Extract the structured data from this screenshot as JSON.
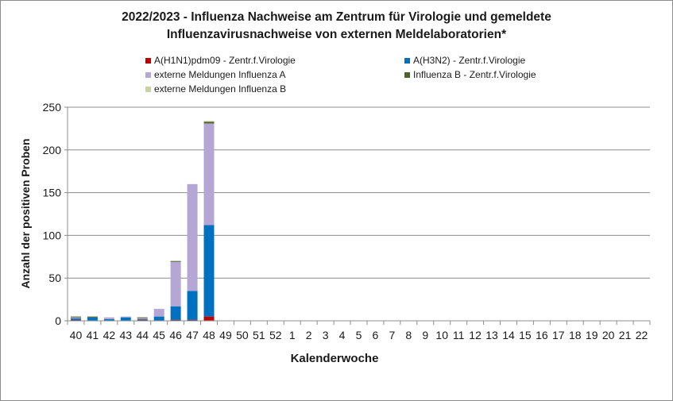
{
  "chart_data": {
    "type": "bar",
    "stacked": true,
    "title_line1": "2022/2023 - Influenza Nachweise am Zentrum für Virologie und gemeldete",
    "title_line2": "Influenzavirusnachweise von externen Meldelaboratorien*",
    "xlabel": "Kalenderwoche",
    "ylabel": "Anzahl der positiven Proben",
    "ylim": [
      0,
      250
    ],
    "yticks": [
      "0",
      "50",
      "100",
      "150",
      "200",
      "250"
    ],
    "grid": true,
    "legend_position": "top",
    "categories": [
      "40",
      "41",
      "42",
      "43",
      "44",
      "45",
      "46",
      "47",
      "48",
      "49",
      "50",
      "51",
      "52",
      "1",
      "2",
      "3",
      "4",
      "5",
      "6",
      "7",
      "8",
      "9",
      "10",
      "11",
      "12",
      "13",
      "14",
      "15",
      "16",
      "17",
      "18",
      "19",
      "20",
      "21",
      "22"
    ],
    "series": [
      {
        "name": "A(H1N1)pdm09 - Zentr.f.Virologie",
        "color": "#c00000",
        "values": [
          1,
          0,
          0,
          0,
          1,
          0,
          1,
          1,
          5,
          0,
          0,
          0,
          0,
          0,
          0,
          0,
          0,
          0,
          0,
          0,
          0,
          0,
          0,
          0,
          0,
          0,
          0,
          0,
          0,
          0,
          0,
          0,
          0,
          0,
          0
        ]
      },
      {
        "name": "A(H3N2)  - Zentr.f.Virologie",
        "color": "#0070c0",
        "values": [
          2,
          4,
          2,
          4,
          1,
          5,
          16,
          34,
          107,
          0,
          0,
          0,
          0,
          0,
          0,
          0,
          0,
          0,
          0,
          0,
          0,
          0,
          0,
          0,
          0,
          0,
          0,
          0,
          0,
          0,
          0,
          0,
          0,
          0,
          0
        ]
      },
      {
        "name": "externe Meldungen Influenza A",
        "color": "#b4a7d6",
        "values": [
          1,
          0,
          2,
          1,
          1,
          9,
          52,
          125,
          119,
          0,
          0,
          0,
          0,
          0,
          0,
          0,
          0,
          0,
          0,
          0,
          0,
          0,
          0,
          0,
          0,
          0,
          0,
          0,
          0,
          0,
          0,
          0,
          0,
          0,
          0
        ]
      },
      {
        "name": "Influenza B - Zentr.f.Virologie",
        "color": "#4f6228",
        "values": [
          1,
          1,
          0,
          0,
          1,
          0,
          1,
          0,
          2,
          0,
          0,
          0,
          0,
          0,
          0,
          0,
          0,
          0,
          0,
          0,
          0,
          0,
          0,
          0,
          0,
          0,
          0,
          0,
          0,
          0,
          0,
          0,
          0,
          0,
          0
        ]
      },
      {
        "name": "externe Meldungen Influenza B",
        "color": "#c3d69b",
        "values": [
          0,
          0,
          0,
          0,
          0,
          0,
          0,
          0,
          1,
          0,
          0,
          0,
          0,
          0,
          0,
          0,
          0,
          0,
          0,
          0,
          0,
          0,
          0,
          0,
          0,
          0,
          0,
          0,
          0,
          0,
          0,
          0,
          0,
          0,
          0
        ]
      }
    ]
  }
}
